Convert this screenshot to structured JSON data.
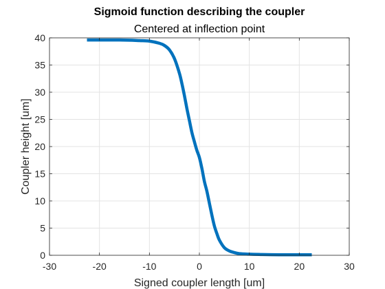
{
  "chart_data": {
    "type": "line",
    "title": "Sigmoid function describing the coupler",
    "subtitle": "Centered at inflection point",
    "xlabel": "Signed coupler length [um]",
    "ylabel": "Coupler height [um]",
    "xlim": [
      -30,
      30
    ],
    "ylim": [
      0,
      40
    ],
    "xticks": [
      -30,
      -20,
      -10,
      0,
      10,
      20,
      30
    ],
    "yticks": [
      0,
      5,
      10,
      15,
      20,
      25,
      30,
      35,
      40
    ],
    "grid": true,
    "series": [
      {
        "color": "#0072bd",
        "x": [
          -22.5,
          -16,
          -12,
          -10,
          -8,
          -7,
          -6,
          -5,
          -4,
          -3.5,
          -3,
          -2.5,
          -2,
          -1.5,
          -1,
          -0.5,
          0,
          0.5,
          1,
          1.5,
          2,
          2.5,
          3,
          3.5,
          4,
          5,
          6,
          7,
          8,
          10,
          12,
          16,
          22.5
        ],
        "y": [
          39.6,
          39.6,
          39.5,
          39.4,
          39.0,
          38.6,
          37.8,
          36.2,
          33.5,
          31.6,
          29.4,
          27.0,
          24.8,
          22.6,
          20.9,
          19.3,
          18.0,
          16.0,
          13.6,
          11.8,
          9.6,
          7.4,
          5.4,
          4.0,
          2.8,
          1.4,
          0.8,
          0.5,
          0.3,
          0.2,
          0.15,
          0.1,
          0.1
        ]
      }
    ]
  }
}
